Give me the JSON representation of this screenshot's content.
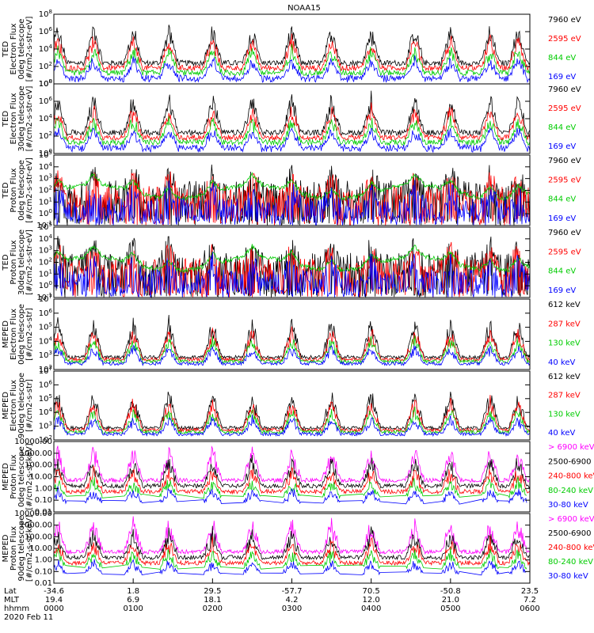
{
  "chart_data": {
    "type": "line",
    "title": "NOAA15",
    "x_range_hours": [
      0,
      6
    ],
    "time_ticks": [
      {
        "lat": "-34.6",
        "mlt": "19.4",
        "hhmm": "0000"
      },
      {
        "lat": "1.8",
        "mlt": "6.9",
        "hhmm": "0100"
      },
      {
        "lat": "29.5",
        "mlt": "18.1",
        "hhmm": "0200"
      },
      {
        "lat": "-57.7",
        "mlt": "4.2",
        "hhmm": "0300"
      },
      {
        "lat": "70.5",
        "mlt": "12.0",
        "hhmm": "0400"
      },
      {
        "lat": "-50.8",
        "mlt": "21.0",
        "hhmm": "0500"
      },
      {
        "lat": "23.5",
        "mlt": "7.2",
        "hhmm": "0600"
      }
    ],
    "axis_row_labels": [
      "Lat",
      "MLT",
      "hhmm"
    ],
    "date_label": "2020 Feb 11",
    "panels": [
      {
        "ylabel": [
          "TED",
          "Electron Flux",
          "0deg telescope",
          "[#/cm2-s-str-eV]"
        ],
        "yticks": [
          "10^0",
          "10^2",
          "10^4",
          "10^6",
          "10^8"
        ],
        "ylog": [
          0,
          8
        ],
        "series": [
          {
            "name": "7960 eV",
            "color": "#000000"
          },
          {
            "name": "2595 eV",
            "color": "#ff0000"
          },
          {
            "name": "844 eV",
            "color": "#00cc00"
          },
          {
            "name": "169 eV",
            "color": "#0000ff"
          }
        ]
      },
      {
        "ylabel": [
          "TED",
          "Electron Flux",
          "30deg telescope",
          "[#/cm2-s-str-eV]"
        ],
        "yticks": [
          "10^0",
          "10^2",
          "10^4",
          "10^6",
          "10^8"
        ],
        "ylog": [
          0,
          8
        ],
        "series": [
          {
            "name": "7960 eV",
            "color": "#000000"
          },
          {
            "name": "2595 eV",
            "color": "#ff0000"
          },
          {
            "name": "844 eV",
            "color": "#00cc00"
          },
          {
            "name": "169 eV",
            "color": "#0000ff"
          }
        ]
      },
      {
        "ylabel": [
          "TED",
          "Proton Flux",
          "0deg telescope",
          "[#/cm2-s-str-eV]"
        ],
        "yticks": [
          "10^-1",
          "10^0",
          "10^1",
          "10^2",
          "10^3",
          "10^4",
          "10^5"
        ],
        "ylog": [
          -1,
          5
        ],
        "series": [
          {
            "name": "7960 eV",
            "color": "#000000"
          },
          {
            "name": "2595 eV",
            "color": "#ff0000"
          },
          {
            "name": "844 eV",
            "color": "#00cc00"
          },
          {
            "name": "169 eV",
            "color": "#0000ff"
          }
        ]
      },
      {
        "ylabel": [
          "TED",
          "Proton Flux",
          "30deg telescope",
          "[#/cm2-s-str-eV]"
        ],
        "yticks": [
          "10^-1",
          "10^0",
          "10^1",
          "10^2",
          "10^3",
          "10^4",
          "10^5"
        ],
        "ylog": [
          -1,
          5
        ],
        "series": [
          {
            "name": "7960 eV",
            "color": "#000000"
          },
          {
            "name": "2595 eV",
            "color": "#ff0000"
          },
          {
            "name": "844 eV",
            "color": "#00cc00"
          },
          {
            "name": "169 eV",
            "color": "#0000ff"
          }
        ]
      },
      {
        "ylabel": [
          "MEPED",
          "Electron Flux",
          "0deg telescope",
          "[#/cm2-s-str]"
        ],
        "yticks": [
          "10^2",
          "10^3",
          "10^4",
          "10^5",
          "10^6",
          "10^7"
        ],
        "ylog": [
          2,
          7
        ],
        "series": [
          {
            "name": "612 keV",
            "color": "#000000"
          },
          {
            "name": "287 keV",
            "color": "#ff0000"
          },
          {
            "name": "130 keV",
            "color": "#00cc00"
          },
          {
            "name": "40 keV",
            "color": "#0000ff"
          }
        ]
      },
      {
        "ylabel": [
          "MEPED",
          "Electron Flux",
          "90deg telescope",
          "[#/cm2-s-str]"
        ],
        "yticks": [
          "10^2",
          "10^3",
          "10^4",
          "10^5",
          "10^6",
          "10^7"
        ],
        "ylog": [
          2,
          7
        ],
        "series": [
          {
            "name": "612 keV",
            "color": "#000000"
          },
          {
            "name": "287 keV",
            "color": "#ff0000"
          },
          {
            "name": "130 keV",
            "color": "#00cc00"
          },
          {
            "name": "40 keV",
            "color": "#0000ff"
          }
        ]
      },
      {
        "ylabel": [
          "MEPED",
          "Proton Flux",
          "0deg telescope",
          "[#/cm2-s-sr-keV]"
        ],
        "yticks": [
          "0.01",
          "0.10",
          "1.00",
          "10.00",
          "100.00",
          "1000.00",
          "10000.00"
        ],
        "ylog": [
          -2,
          4
        ],
        "series": [
          {
            "name": "> 6900 keV",
            "color": "#ff00ff"
          },
          {
            "name": "2500-6900",
            "color": "#000000"
          },
          {
            "name": "240-800 keV",
            "color": "#ff0000"
          },
          {
            "name": "80-240 keV",
            "color": "#00cc00"
          },
          {
            "name": "30-80 keV",
            "color": "#0000ff"
          }
        ]
      },
      {
        "ylabel": [
          "MEPED",
          "Proton Flux",
          "90deg telescope",
          "[#/cm2-s-sr-keV]"
        ],
        "yticks": [
          "0.01",
          "0.10",
          "1.00",
          "10.00",
          "100.00",
          "1000.00",
          "10000.00"
        ],
        "ylog": [
          -2,
          4
        ],
        "series": [
          {
            "name": "> 6900 keV",
            "color": "#ff00ff"
          },
          {
            "name": "2500-6900",
            "color": "#000000"
          },
          {
            "name": "240-800 keV",
            "color": "#ff0000"
          },
          {
            "name": "80-240 keV",
            "color": "#00cc00"
          },
          {
            "name": "30-80 keV",
            "color": "#0000ff"
          }
        ]
      }
    ],
    "pass_peaks_hours": [
      0.05,
      0.5,
      1.0,
      1.45,
      2.0,
      2.5,
      3.0,
      3.5,
      4.0,
      4.55,
      5.0,
      5.5,
      5.85
    ]
  }
}
